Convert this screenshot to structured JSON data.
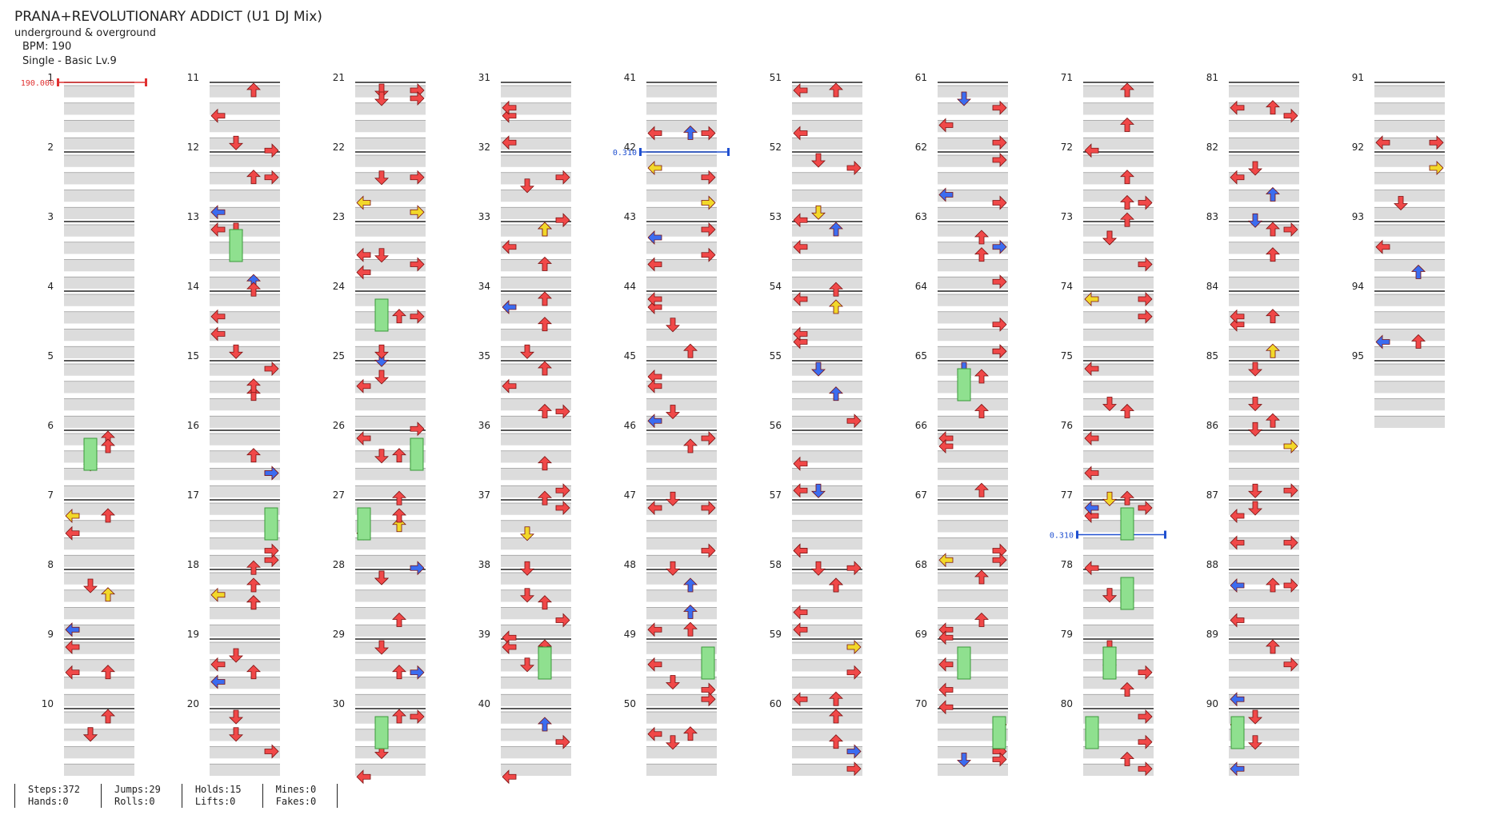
{
  "song": {
    "title": "PRANA+REVOLUTIONARY ADDICT (U1 DJ Mix)",
    "artist": "underground & overground",
    "bpm_label": "BPM: 190",
    "chart_label": "Single - Basic  Lv.9"
  },
  "colors": {
    "red_arrow": "#f04848",
    "blue_arrow": "#3b6cf0",
    "yellow_arrow": "#f2d82a",
    "hold_green": "#8fe08f",
    "band_gray": "#dcdcdc",
    "measure_line": "#222222",
    "bpm_marker": "#e03030",
    "speed_marker": "#2050d0"
  },
  "measures": {
    "count": 95,
    "labels": [
      "1",
      "2",
      "3",
      "4",
      "5",
      "6",
      "7",
      "8",
      "9",
      "10",
      "11",
      "12",
      "13",
      "14",
      "15",
      "16",
      "17",
      "18",
      "19",
      "20",
      "21",
      "22",
      "23",
      "24",
      "25",
      "26",
      "27",
      "28",
      "29",
      "30",
      "31",
      "32",
      "33",
      "34",
      "35",
      "36",
      "37",
      "38",
      "39",
      "40",
      "41",
      "42",
      "43",
      "44",
      "45",
      "46",
      "47",
      "48",
      "49",
      "50",
      "51",
      "52",
      "53",
      "54",
      "55",
      "56",
      "57",
      "58",
      "59",
      "60",
      "61",
      "62",
      "63",
      "64",
      "65",
      "66",
      "67",
      "68",
      "69",
      "70",
      "71",
      "72",
      "73",
      "74",
      "75",
      "76",
      "77",
      "78",
      "79",
      "80",
      "81",
      "82",
      "83",
      "84",
      "85",
      "86",
      "87",
      "88",
      "89",
      "90",
      "91",
      "92",
      "93",
      "94",
      "95"
    ]
  },
  "markers": [
    {
      "measure": 1,
      "text": "190.000",
      "kind": "bpm"
    },
    {
      "measure": 42,
      "text": "0.310",
      "kind": "speed"
    },
    {
      "measure": 77.5,
      "text": "0.310",
      "kind": "speed"
    }
  ],
  "stats": {
    "steps": "Steps:372",
    "hands": "Hands:0",
    "jumps": "Jumps:29",
    "rolls": "Rolls:0",
    "holds": "Holds:15",
    "lifts": "Lifts:0",
    "mines": "Mines:0",
    "fakes": "Fakes:0"
  },
  "icons": {
    "left": "left-arrow-icon",
    "down": "down-arrow-icon",
    "up": "up-arrow-icon",
    "right": "right-arrow-icon",
    "hold": "hold-bar-icon"
  }
}
